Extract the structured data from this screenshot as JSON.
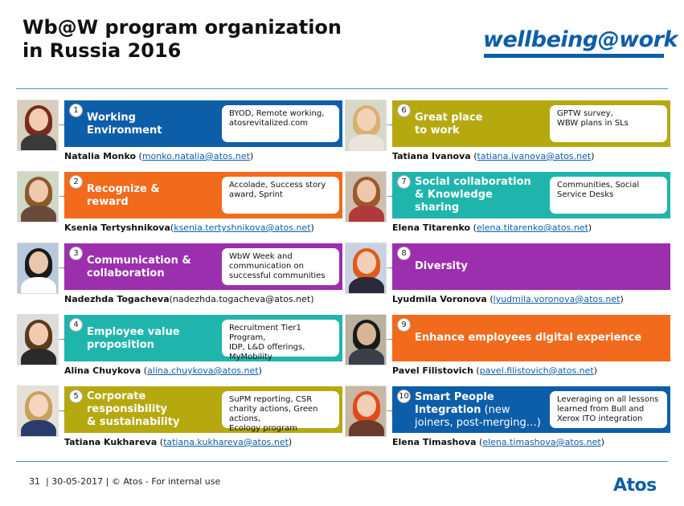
{
  "title": "Wb@W program organization\nin Russia 2016",
  "logo": "wellbeing@work",
  "footer": {
    "page": "31",
    "text": "| 30-05-2017 | © Atos - For internal use"
  },
  "atos_logo": "Atos",
  "colors": {
    "blue": "#0d5ea8",
    "orange": "#f26a1b",
    "purple": "#9b2fae",
    "teal": "#1fb5ad",
    "olive": "#b5a90f"
  },
  "items": [
    {
      "num": "1",
      "label": "Working\nEnvironment",
      "sub": "",
      "desc": "BYOD, Remote working,\natosrevitalized.com",
      "name": "Natalia Monko",
      "email_pre": " (",
      "email": "monko.natalia@atos.net",
      "email_post": ")",
      "linked": true,
      "color": "#0d5ea8"
    },
    {
      "num": "2",
      "label": "Recognize &\nreward",
      "sub": "",
      "desc": "Accolade, Success story\naward, Sprint",
      "name": "Ksenia Tertyshnikova",
      "email_pre": "(",
      "email": "ksenia.tertyshnikova@atos.net",
      "email_post": ")",
      "linked": true,
      "color": "#f26a1b"
    },
    {
      "num": "3",
      "label": "Communication &\ncollaboration",
      "sub": "",
      "desc": "WbW Week and\ncommunication on\nsuccessful communities",
      "name": "Nadezhda Togacheva",
      "email_pre": "(",
      "email": "nadezhda.togacheva@atos.net",
      "email_post": ")",
      "linked": false,
      "color": "#9b2fae"
    },
    {
      "num": "4",
      "label": "Employee value\nproposition",
      "sub": "",
      "desc": "Recruitment Tier1 Program,\nIDP, L&D offerings,\nMyMobility",
      "name": "Alina Chuykova",
      "email_pre": " (",
      "email": "alina.chuykova@atos.net",
      "email_post": ")",
      "linked": true,
      "color": "#1fb5ad"
    },
    {
      "num": "5",
      "label": "Corporate\nresponsibility\n& sustainability",
      "sub": "",
      "desc": "SuPM reporting, CSR\ncharity actions, Green\nactions,\nEcology program",
      "name": "Tatiana Kukhareva",
      "email_pre": " (",
      "email": "tatiana.kukhareva@atos.net",
      "email_post": ")",
      "linked": true,
      "color": "#b5a90f"
    },
    {
      "num": "6",
      "label": "Great place\nto work",
      "sub": "",
      "desc": "GPTW survey,\nWBW plans in SLs",
      "name": "Tatiana Ivanova",
      "email_pre": " (",
      "email": "tatiana.ivanova@atos.net",
      "email_post": ")",
      "linked": true,
      "color": "#b5a90f"
    },
    {
      "num": "7",
      "label": "Social collaboration\n& Knowledge\nsharing",
      "sub": "",
      "desc": "Communities, Social\nService Desks",
      "name": "Elena Titarenko",
      "email_pre": " (",
      "email": "elena.titarenko@atos.net",
      "email_post": ")",
      "linked": true,
      "color": "#1fb5ad"
    },
    {
      "num": "8",
      "label": "Diversity",
      "sub": "",
      "desc": "",
      "name": "Lyudmila Voronova",
      "email_pre": " (",
      "email": "lyudmila.voronova@atos.net",
      "email_post": ")",
      "linked": true,
      "color": "#9b2fae"
    },
    {
      "num": "9",
      "label": "Enhance employees digital experience",
      "sub": "",
      "desc": "",
      "name": "Pavel Filistovich",
      "email_pre": " (",
      "email": "pavel.filistovich@atos.net",
      "email_post": ")",
      "linked": true,
      "color": "#f26a1b"
    },
    {
      "num": "10",
      "label": "Smart People\nIntegration",
      "sub": " (new\njoiners, post-merging…)",
      "desc": "Leveraging on all lessons\nlearned from Bull and\nXerox ITO integration",
      "name": "Elena Timashova",
      "email_pre": " (",
      "email": "elena.timashova@atos.net",
      "email_post": ")",
      "linked": true,
      "color": "#0d5ea8"
    }
  ]
}
